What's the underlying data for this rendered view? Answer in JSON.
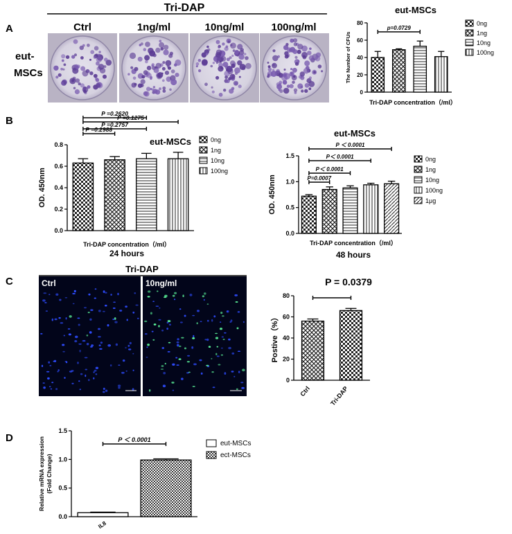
{
  "panel_labels": [
    "A",
    "B",
    "C",
    "D"
  ],
  "panelA": {
    "header": "Tri-DAP",
    "columns": [
      "Ctrl",
      "1ng/ml",
      "10ng/ml",
      "100ng/ml"
    ],
    "row_label_1": "eut-",
    "row_label_2": "MSCs"
  },
  "panelC": {
    "header": "Tri-DAP",
    "left_label": "Ctrl",
    "right_label": "10ng/ml"
  },
  "chart_data": [
    {
      "id": "A-cfu",
      "type": "bar",
      "title": "eut-MSCs",
      "xlabel": "Tri-DAP concentration（/ml）",
      "ylabel": "The Number of CFUs",
      "ylim": [
        0,
        80
      ],
      "yticks": [
        "0",
        "20",
        "40",
        "60",
        "80"
      ],
      "categories": [
        "0ng",
        "1ng",
        "10ng",
        "100ng"
      ],
      "values": [
        40,
        49,
        53,
        41
      ],
      "errors": [
        7,
        1,
        6,
        6
      ],
      "legend": [
        "0ng",
        "1ng",
        "10ng",
        "100ng"
      ],
      "legend_position": "right",
      "annotations": [
        {
          "text": "p=0.0729",
          "from": 0,
          "to": 2
        }
      ]
    },
    {
      "id": "B-24h",
      "type": "bar",
      "title": "eut-MSCs",
      "xlabel": "Tri-DAP concentration（/ml）",
      "subtitle": "24 hours",
      "ylabel": "OD. 450nm",
      "ylim": [
        0,
        0.8
      ],
      "yticks": [
        "0.0",
        "0.2",
        "0.4",
        "0.6",
        "0.8"
      ],
      "categories": [
        "0ng",
        "1ng",
        "10ng",
        "100ng"
      ],
      "values": [
        0.63,
        0.66,
        0.67,
        0.67
      ],
      "errors": [
        0.04,
        0.03,
        0.05,
        0.06
      ],
      "legend": [
        "0ng",
        "1ng",
        "10ng",
        "100ng"
      ],
      "legend_position": "right",
      "annotations": [
        {
          "text": "P =0.2988",
          "from": 0,
          "to": 1
        },
        {
          "text": "P =0.2620",
          "from": 0,
          "to": 2
        },
        {
          "text": "P =0.2757",
          "from": 0,
          "to": 2
        },
        {
          "text": "P =0.1275",
          "from": 0,
          "to": 3
        }
      ]
    },
    {
      "id": "B-48h",
      "type": "bar",
      "title": "eut-MSCs",
      "xlabel": "Tri-DAP concentration（/ml）",
      "subtitle": "48 hours",
      "ylabel": "OD. 450nm",
      "ylim": [
        0,
        1.5
      ],
      "yticks": [
        "0.0",
        "0.5",
        "1.0",
        "1.5"
      ],
      "categories": [
        "0ng",
        "1ng",
        "10ng",
        "100ng",
        "1μg"
      ],
      "values": [
        0.72,
        0.85,
        0.88,
        0.94,
        0.96
      ],
      "errors": [
        0.03,
        0.05,
        0.04,
        0.03,
        0.05
      ],
      "legend": [
        "0ng",
        "1ng",
        "10ng",
        "100ng",
        "1μg"
      ],
      "legend_position": "right",
      "annotations": [
        {
          "text": "P=0.0007",
          "from": 0,
          "to": 1
        },
        {
          "text": "P＜ 0.0001",
          "from": 0,
          "to": 2
        },
        {
          "text": "P＜ 0.0001",
          "from": 0,
          "to": 3
        },
        {
          "text": "P ＜ 0.0001",
          "from": 0,
          "to": 4
        }
      ]
    },
    {
      "id": "C-positive",
      "type": "bar",
      "title": "P = 0.0379",
      "xlabel": "",
      "ylabel": "Postive（%）",
      "ylim": [
        0,
        80
      ],
      "yticks": [
        "0",
        "20",
        "40",
        "60",
        "80"
      ],
      "categories": [
        "Ctrl",
        "Tri-DAP"
      ],
      "values": [
        56,
        66
      ],
      "errors": [
        2,
        2
      ],
      "annotations": [
        {
          "text": "P = 0.0379",
          "from": 0,
          "to": 1
        }
      ]
    },
    {
      "id": "D-il8",
      "type": "bar",
      "title": "",
      "xlabel": "",
      "ylabel": "Relative mRNA expression (Fold Change)",
      "ylabel_line1": "Relative mRNA expression",
      "ylabel_line2": "(Fold Change)",
      "ylim": [
        0,
        1.5
      ],
      "yticks": [
        "0.0",
        "0.5",
        "1.0",
        "1.5"
      ],
      "categories": [
        "IL8"
      ],
      "series": [
        {
          "name": "eut-MSCs",
          "values": [
            0.07
          ],
          "errors": [
            0.01
          ]
        },
        {
          "name": "ect-MSCs",
          "values": [
            0.99
          ],
          "errors": [
            0.02
          ]
        }
      ],
      "legend_position": "right",
      "annotations": [
        {
          "text": "P ＜ 0.0001",
          "from": 0,
          "to": 1
        }
      ]
    }
  ]
}
